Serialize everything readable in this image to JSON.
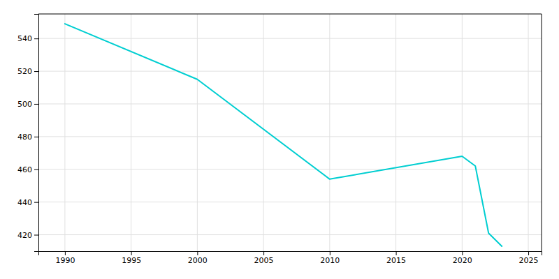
{
  "chart_data": {
    "type": "line",
    "x": [
      1990,
      2000,
      2010,
      2020,
      2021,
      2022,
      2023
    ],
    "values": [
      549,
      515,
      454,
      468,
      462,
      421,
      413
    ],
    "color": "#00CED1",
    "xlim": [
      1988,
      2026
    ],
    "ylim": [
      410,
      555
    ],
    "xticks": [
      1990,
      1995,
      2000,
      2005,
      2010,
      2015,
      2020,
      2025
    ],
    "yticks": [
      420,
      440,
      460,
      480,
      500,
      520,
      540
    ],
    "grid": true
  }
}
